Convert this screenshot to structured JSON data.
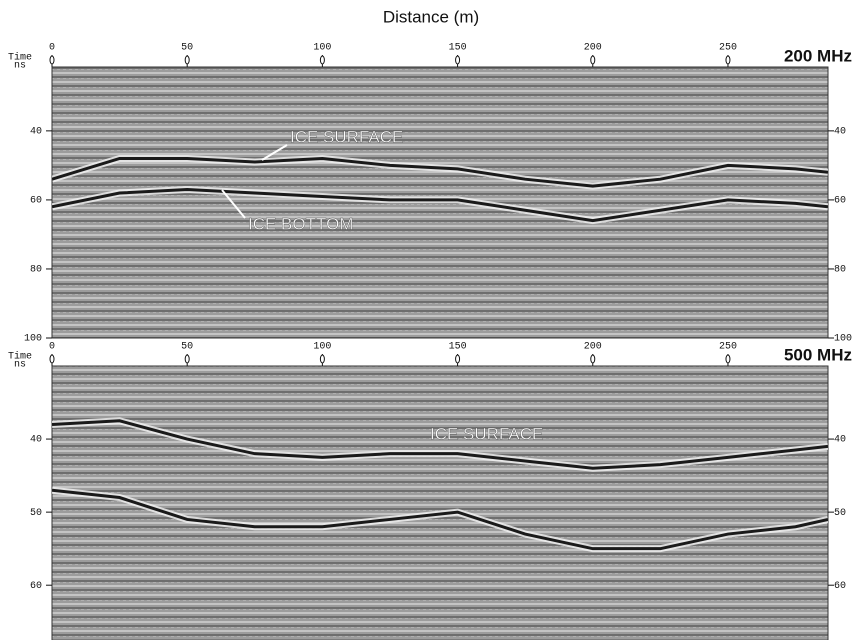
{
  "chart_data": [
    {
      "type": "radargram",
      "xlabel": "Distance (m)",
      "title": "200 MHz",
      "ylabel": "Time",
      "yunit": "ns",
      "xlim": [
        0,
        287
      ],
      "xticks": [
        0,
        50,
        100,
        150,
        200,
        250
      ],
      "ylim": [
        21.5,
        100
      ],
      "yticks": [
        40,
        60,
        80,
        100
      ],
      "x": [
        0,
        25,
        50,
        75,
        100,
        125,
        150,
        175,
        200,
        225,
        250,
        275,
        287
      ],
      "series": [
        {
          "color": "#1a1a1a",
          "values": [
            54,
            48,
            48,
            49,
            48,
            50,
            51,
            54,
            56,
            54,
            50,
            51,
            52
          ]
        },
        {
          "color": "#1a1a1a",
          "values": [
            62,
            58,
            57,
            58,
            59,
            60,
            60,
            63,
            66,
            63,
            60,
            61,
            62
          ]
        }
      ],
      "annotations": [
        "ICE SURFACE",
        "ICE BOTTOM"
      ]
    },
    {
      "type": "radargram",
      "title": "500 MHz",
      "ylabel": "Time",
      "yunit": "ns",
      "xlim": [
        0,
        287
      ],
      "xticks": [
        0,
        50,
        100,
        150,
        200,
        250
      ],
      "ylim": [
        30,
        67.5
      ],
      "yticks": [
        40,
        50,
        60
      ],
      "x": [
        0,
        25,
        50,
        75,
        100,
        125,
        150,
        175,
        200,
        225,
        250,
        275,
        287
      ],
      "series": [
        {
          "color": "#1a1a1a",
          "values": [
            38,
            37.5,
            40,
            42,
            42.5,
            42,
            42,
            43,
            44,
            43.5,
            42.5,
            41.5,
            41
          ]
        },
        {
          "color": "#1a1a1a",
          "values": [
            47,
            48,
            51,
            52,
            52,
            51,
            50,
            53,
            55,
            55,
            53,
            52,
            51
          ]
        }
      ],
      "annotations": [
        "ICE SURFACE"
      ]
    }
  ]
}
